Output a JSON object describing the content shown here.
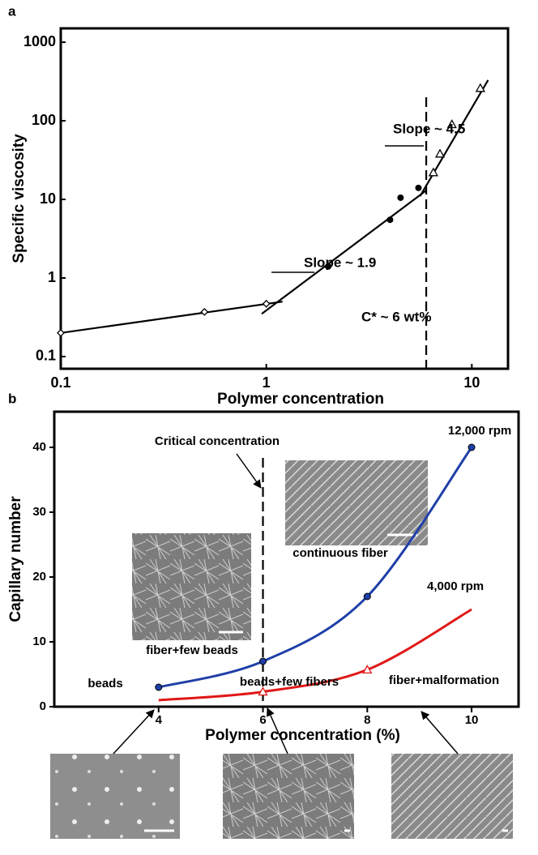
{
  "chart_data": [
    {
      "type": "scatter",
      "panel_label": "a",
      "x_label": "Polymer concentration",
      "y_label": "Specific viscosity",
      "log_x": true,
      "log_y": true,
      "xlim": [
        0.1,
        15
      ],
      "ylim": [
        0.07,
        1500
      ],
      "xticks": [
        0.1,
        1,
        10
      ],
      "yticks": [
        0.1,
        1,
        10,
        100,
        1000
      ],
      "series": [
        {
          "marker": "diamond",
          "color": "#000000",
          "x": [
            0.1,
            0.5,
            1
          ],
          "values": [
            0.2,
            0.37,
            0.47
          ]
        },
        {
          "marker": "circle",
          "color": "#000000",
          "x": [
            2,
            4,
            4.5,
            5.5
          ],
          "values": [
            1.4,
            5.5,
            10.5,
            14
          ]
        },
        {
          "marker": "triangle",
          "color": "#000000",
          "x": [
            6.5,
            7,
            8,
            11
          ],
          "values": [
            22,
            38,
            90,
            260
          ]
        }
      ],
      "fit_lines": [
        {
          "x": [
            0.1,
            1.2
          ],
          "values": [
            0.2,
            0.5
          ]
        },
        {
          "x": [
            0.95,
            6
          ],
          "values": [
            0.35,
            13
          ]
        },
        {
          "x": [
            5.6,
            12
          ],
          "values": [
            11,
            330
          ]
        }
      ],
      "threshold_x": 6,
      "annotations": [
        "Slope ~ 1.9",
        "Slope ~ 4.5",
        "C* ~ 6 wt%"
      ]
    },
    {
      "type": "line",
      "panel_label": "b",
      "x_label": "Polymer concentration (%)",
      "y_label": "Capillary number",
      "xlim": [
        2,
        10.9
      ],
      "ylim": [
        0,
        45.5
      ],
      "xticks": [
        4,
        6,
        8,
        10
      ],
      "yticks": [
        0,
        10,
        20,
        30,
        40
      ],
      "x": [
        4,
        6,
        8,
        10
      ],
      "series": [
        {
          "name": "12,000 rpm",
          "color": "#1f3fa8",
          "values": [
            3,
            7,
            17,
            40
          ]
        },
        {
          "name": "4,000 rpm",
          "color": "#e01818",
          "values": [
            1,
            2.3,
            5.7,
            15
          ]
        }
      ],
      "threshold_x": 6,
      "threshold_label": "Critical concentration",
      "annotations": [
        "beads",
        "beads+few fibers",
        "fiber+few beads",
        "continuous fiber",
        "fiber+malformation"
      ]
    }
  ]
}
